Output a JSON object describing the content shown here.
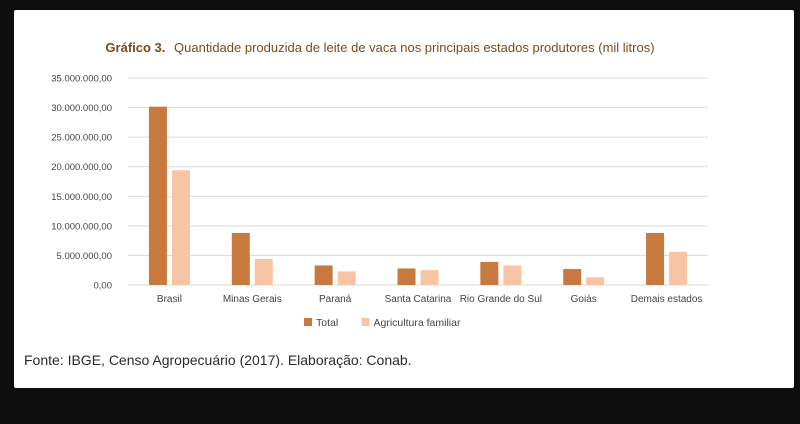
{
  "chart_data": {
    "type": "bar",
    "title_prefix": "Gráfico 3.",
    "title": "Quantidade produzida de leite de vaca nos principais estados produtores (mil litros)",
    "categories": [
      "Brasil",
      "Minas Gerais",
      "Paraná",
      "Santa Catarina",
      "Rio Grande do Sul",
      "Goiás",
      "Demais estados"
    ],
    "series": [
      {
        "name": "Total",
        "color": "#c87a3e",
        "values": [
          30150000,
          8800000,
          3300000,
          2800000,
          3900000,
          2700000,
          8800000
        ]
      },
      {
        "name": "Agricultura familiar",
        "color": "#f8c4a6",
        "values": [
          19400000,
          4400000,
          2300000,
          2500000,
          3300000,
          1300000,
          5600000
        ]
      }
    ],
    "ylim": [
      0,
      35000000
    ],
    "yticks": [
      "0,00",
      "5.000.000,00",
      "10.000.000,00",
      "15.000.000,00",
      "20.000.000,00",
      "25.000.000,00",
      "30.000.000,00",
      "35.000.000,00"
    ],
    "grid": true,
    "legend_position": "bottom"
  },
  "source": "Fonte: IBGE, Censo Agropecuário (2017). Elaboração: Conab.",
  "colors": {
    "title_text": "#7a4a1e",
    "axis_text": "#444444",
    "grid": "#d9d9d9"
  }
}
